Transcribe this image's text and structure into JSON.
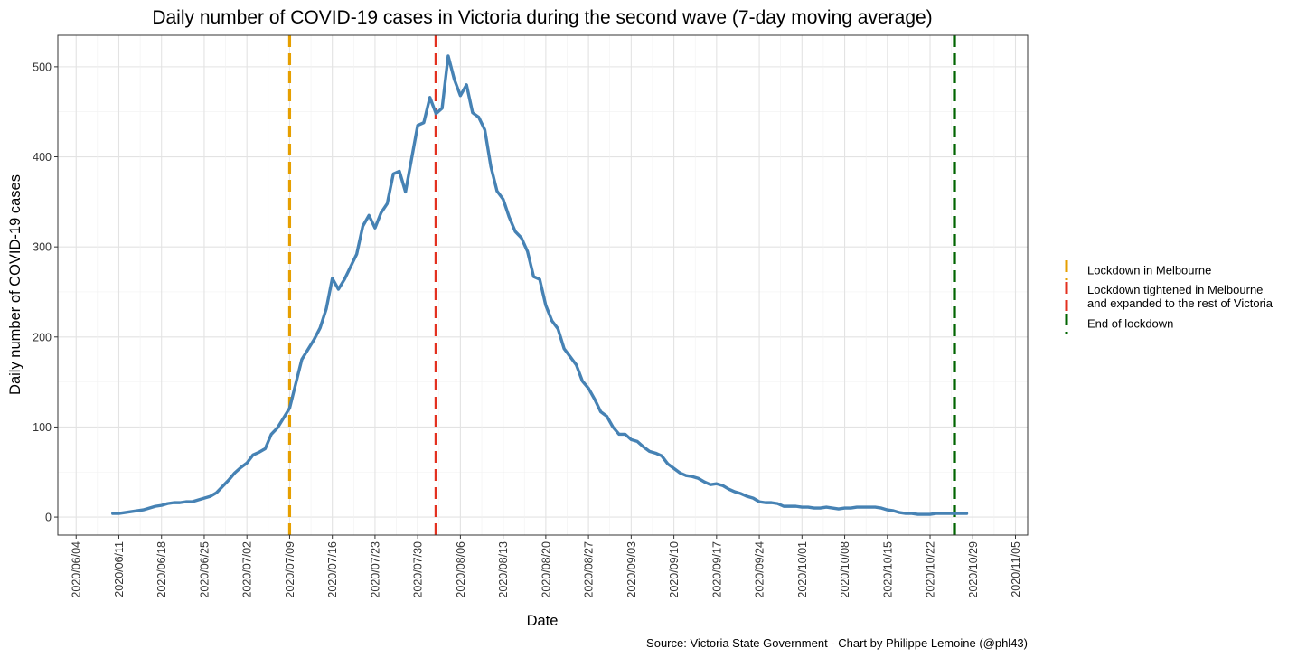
{
  "chart_data": {
    "type": "line",
    "title": "Daily number of COVID-19 cases in Victoria during the second wave (7-day moving average)",
    "xlabel": "Date",
    "ylabel": "Daily number of COVID-19 cases",
    "caption": "Source: Victoria State Government - Chart by Philippe Lemoine (@phl43)",
    "x_range": [
      "2020-06-01",
      "2020-11-07"
    ],
    "ylim": [
      -20,
      535
    ],
    "y_ticks": [
      0,
      100,
      200,
      300,
      400,
      500
    ],
    "x_tick_labels": [
      "2020/06/04",
      "2020/06/11",
      "2020/06/18",
      "2020/06/25",
      "2020/07/02",
      "2020/07/09",
      "2020/07/16",
      "2020/07/23",
      "2020/07/30",
      "2020/08/06",
      "2020/08/13",
      "2020/08/20",
      "2020/08/27",
      "2020/09/03",
      "2020/09/10",
      "2020/09/17",
      "2020/09/24",
      "2020/10/01",
      "2020/10/08",
      "2020/10/15",
      "2020/10/22",
      "2020/10/29",
      "2020/11/05"
    ],
    "grid": true,
    "legend_position": "right",
    "series": [
      {
        "color": "#4682b4",
        "start_date": "2020-06-10",
        "values": [
          4,
          4,
          5,
          6,
          7,
          8,
          10,
          12,
          13,
          15,
          16,
          16,
          17,
          17,
          19,
          21,
          23,
          27,
          34,
          41,
          49,
          55,
          60,
          69,
          72,
          76,
          92,
          99,
          110,
          121,
          148,
          175,
          186,
          197,
          210,
          231,
          265,
          253,
          264,
          278,
          292,
          323,
          335,
          321,
          338,
          348,
          381,
          384,
          361,
          398,
          435,
          438,
          466,
          448,
          454,
          512,
          486,
          468,
          480,
          449,
          444,
          430,
          389,
          362,
          353,
          333,
          317,
          310,
          295,
          267,
          264,
          235,
          218,
          209,
          187,
          178,
          169,
          151,
          143,
          131,
          117,
          112,
          100,
          92,
          92,
          86,
          84,
          78,
          73,
          71,
          68,
          59,
          54,
          49,
          46,
          45,
          43,
          39,
          36,
          37,
          35,
          31,
          28,
          26,
          23,
          21,
          17,
          16,
          16,
          15,
          12,
          12,
          12,
          11,
          11,
          10,
          10,
          11,
          10,
          9,
          10,
          10,
          11,
          11,
          11,
          11,
          10,
          8,
          7,
          5,
          4,
          4,
          3,
          3,
          3,
          4,
          4,
          4,
          4,
          4,
          4
        ]
      }
    ],
    "vlines": [
      {
        "date": "2020-07-09",
        "label": "Lockdown in Melbourne",
        "color": "#e69f00"
      },
      {
        "date": "2020-08-02",
        "label": "Lockdown tightened in Melbourne\nand expanded to the rest of Victoria",
        "color": "#e3301f"
      },
      {
        "date": "2020-10-26",
        "label": "End of lockdown",
        "color": "#006400"
      }
    ]
  }
}
